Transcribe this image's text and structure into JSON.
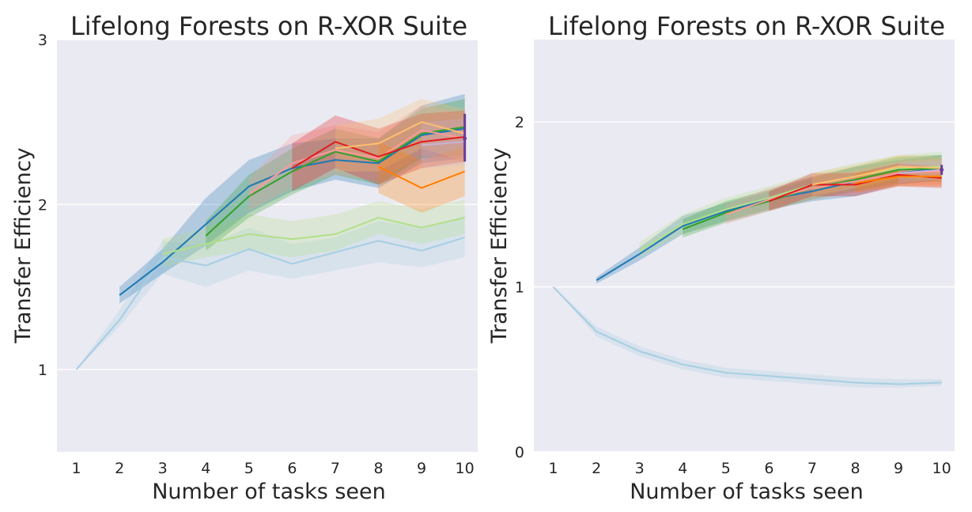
{
  "chart_data": [
    {
      "type": "line",
      "title": "Lifelong Forests on R-XOR Suite",
      "xlabel": "Number of tasks seen",
      "ylabel": "Transfer Efficiency",
      "x_ticks": [
        1,
        2,
        3,
        4,
        5,
        6,
        7,
        8,
        9,
        10
      ],
      "y_ticks": [
        1,
        2,
        3
      ],
      "xlim": [
        0.55,
        10.3
      ],
      "ylim": [
        0.5,
        3.0
      ],
      "grid": true,
      "background": "#eaeaf2",
      "series": [
        {
          "color": "#a6cee3",
          "x": [
            1,
            2,
            3,
            4,
            5,
            6,
            7,
            8,
            9,
            10
          ],
          "y": [
            1.0,
            1.3,
            1.68,
            1.63,
            1.73,
            1.64,
            1.71,
            1.78,
            1.72,
            1.8
          ],
          "lower": [
            1.0,
            1.26,
            1.58,
            1.5,
            1.6,
            1.55,
            1.6,
            1.65,
            1.62,
            1.68
          ],
          "upper": [
            1.0,
            1.36,
            1.78,
            1.75,
            1.86,
            1.76,
            1.8,
            1.9,
            1.86,
            1.93
          ]
        },
        {
          "color": "#1f78b4",
          "x": [
            2,
            3,
            4,
            5,
            6,
            7,
            8,
            9,
            10
          ],
          "y": [
            1.45,
            1.65,
            1.88,
            2.11,
            2.22,
            2.27,
            2.25,
            2.42,
            2.46
          ],
          "lower": [
            1.4,
            1.58,
            1.75,
            1.95,
            2.08,
            2.15,
            2.1,
            2.25,
            2.28
          ],
          "upper": [
            1.5,
            1.73,
            2.04,
            2.27,
            2.37,
            2.4,
            2.4,
            2.6,
            2.67
          ]
        },
        {
          "color": "#b2df8a",
          "x": [
            3,
            4,
            5,
            6,
            7,
            8,
            9,
            10
          ],
          "y": [
            1.7,
            1.76,
            1.82,
            1.79,
            1.82,
            1.92,
            1.86,
            1.92
          ],
          "lower": [
            1.62,
            1.68,
            1.72,
            1.68,
            1.72,
            1.82,
            1.76,
            1.82
          ],
          "upper": [
            1.79,
            1.86,
            1.94,
            1.9,
            1.94,
            2.02,
            1.97,
            2.03
          ]
        },
        {
          "color": "#33a02c",
          "x": [
            4,
            5,
            6,
            7,
            8,
            9,
            10
          ],
          "y": [
            1.81,
            2.05,
            2.2,
            2.32,
            2.26,
            2.43,
            2.47
          ],
          "lower": [
            1.72,
            1.92,
            2.06,
            2.18,
            2.12,
            2.28,
            2.3
          ],
          "upper": [
            1.9,
            2.18,
            2.34,
            2.46,
            2.4,
            2.58,
            2.64
          ]
        },
        {
          "color": "#fb9a99",
          "x": [
            5,
            6,
            7,
            8,
            9,
            10
          ],
          "y": [
            2.06,
            2.25,
            2.33,
            2.28,
            2.45,
            2.4
          ],
          "lower": [
            1.96,
            2.1,
            2.18,
            2.14,
            2.3,
            2.26
          ],
          "upper": [
            2.16,
            2.42,
            2.48,
            2.44,
            2.6,
            2.56
          ]
        },
        {
          "color": "#e31a1c",
          "x": [
            6,
            7,
            8,
            9,
            10
          ],
          "y": [
            2.22,
            2.38,
            2.29,
            2.38,
            2.41
          ],
          "lower": [
            2.08,
            2.22,
            2.12,
            2.22,
            2.26
          ],
          "upper": [
            2.37,
            2.54,
            2.46,
            2.55,
            2.57
          ]
        },
        {
          "color": "#fdbf6f",
          "x": [
            7,
            8,
            9,
            10
          ],
          "y": [
            2.34,
            2.37,
            2.5,
            2.43
          ],
          "lower": [
            2.2,
            2.2,
            2.34,
            2.26
          ],
          "upper": [
            2.48,
            2.52,
            2.64,
            2.58
          ]
        },
        {
          "color": "#ff7f00",
          "x": [
            8,
            9,
            10
          ],
          "y": [
            2.23,
            2.1,
            2.2
          ],
          "lower": [
            2.07,
            1.95,
            2.05
          ],
          "upper": [
            2.38,
            2.27,
            2.35
          ]
        },
        {
          "color": "#cab2d6",
          "x": [
            9,
            10
          ],
          "y": [
            2.36,
            2.38
          ],
          "lower": [
            2.22,
            2.24
          ],
          "upper": [
            2.5,
            2.52
          ]
        },
        {
          "color": "#6a3d9a",
          "x": [
            10
          ],
          "y": [
            2.4
          ],
          "lower": [
            2.26
          ],
          "upper": [
            2.55
          ]
        }
      ]
    },
    {
      "type": "line",
      "title": "Lifelong Forests on R-XOR Suite",
      "xlabel": "Number of tasks seen",
      "ylabel": "Transfer Efficiency",
      "x_ticks": [
        1,
        2,
        3,
        4,
        5,
        6,
        7,
        8,
        9,
        10
      ],
      "y_ticks": [
        0,
        1,
        2
      ],
      "xlim": [
        0.55,
        10.3
      ],
      "ylim": [
        0.0,
        2.5
      ],
      "grid": true,
      "background": "#eaeaf2",
      "series": [
        {
          "color": "#a6cee3",
          "x": [
            1,
            2,
            3,
            4,
            5,
            6,
            7,
            8,
            9,
            10
          ],
          "y": [
            1.0,
            0.73,
            0.61,
            0.53,
            0.48,
            0.46,
            0.44,
            0.42,
            0.41,
            0.42
          ],
          "lower": [
            1.0,
            0.7,
            0.58,
            0.5,
            0.45,
            0.43,
            0.41,
            0.39,
            0.39,
            0.4
          ],
          "upper": [
            1.0,
            0.76,
            0.64,
            0.56,
            0.51,
            0.49,
            0.47,
            0.45,
            0.44,
            0.44
          ]
        },
        {
          "color": "#1f78b4",
          "x": [
            2,
            3,
            4,
            5,
            6,
            7,
            8,
            9,
            10
          ],
          "y": [
            1.04,
            1.2,
            1.37,
            1.46,
            1.53,
            1.58,
            1.64,
            1.69,
            1.72
          ],
          "lower": [
            1.02,
            1.16,
            1.32,
            1.4,
            1.47,
            1.52,
            1.55,
            1.62,
            1.65
          ],
          "upper": [
            1.06,
            1.24,
            1.43,
            1.51,
            1.58,
            1.66,
            1.73,
            1.77,
            1.8
          ]
        },
        {
          "color": "#b2df8a",
          "x": [
            3,
            4,
            5,
            6,
            7,
            8,
            9,
            10
          ],
          "y": [
            1.22,
            1.38,
            1.47,
            1.54,
            1.62,
            1.67,
            1.72,
            1.73
          ],
          "lower": [
            1.18,
            1.32,
            1.4,
            1.47,
            1.54,
            1.59,
            1.64,
            1.64
          ],
          "upper": [
            1.27,
            1.44,
            1.54,
            1.61,
            1.69,
            1.75,
            1.8,
            1.82
          ]
        },
        {
          "color": "#33a02c",
          "x": [
            4,
            5,
            6,
            7,
            8,
            9,
            10
          ],
          "y": [
            1.35,
            1.45,
            1.52,
            1.6,
            1.65,
            1.71,
            1.72
          ],
          "lower": [
            1.3,
            1.39,
            1.46,
            1.53,
            1.58,
            1.63,
            1.64
          ],
          "upper": [
            1.41,
            1.52,
            1.59,
            1.67,
            1.73,
            1.79,
            1.8
          ]
        },
        {
          "color": "#fb9a99",
          "x": [
            5,
            6,
            7,
            8,
            9,
            10
          ],
          "y": [
            1.44,
            1.53,
            1.6,
            1.64,
            1.69,
            1.7
          ],
          "lower": [
            1.38,
            1.46,
            1.53,
            1.57,
            1.62,
            1.62
          ],
          "upper": [
            1.5,
            1.6,
            1.67,
            1.71,
            1.76,
            1.78
          ]
        },
        {
          "color": "#e31a1c",
          "x": [
            6,
            7,
            8,
            9,
            10
          ],
          "y": [
            1.52,
            1.62,
            1.62,
            1.68,
            1.66
          ],
          "lower": [
            1.46,
            1.55,
            1.55,
            1.61,
            1.6
          ],
          "upper": [
            1.58,
            1.69,
            1.69,
            1.75,
            1.73
          ]
        },
        {
          "color": "#fdbf6f",
          "x": [
            7,
            8,
            9,
            10
          ],
          "y": [
            1.62,
            1.67,
            1.73,
            1.72
          ],
          "lower": [
            1.55,
            1.6,
            1.66,
            1.65
          ],
          "upper": [
            1.69,
            1.74,
            1.8,
            1.79
          ]
        },
        {
          "color": "#ff7f00",
          "x": [
            8,
            9,
            10
          ],
          "y": [
            1.63,
            1.67,
            1.67
          ],
          "lower": [
            1.57,
            1.61,
            1.61
          ],
          "upper": [
            1.69,
            1.73,
            1.73
          ]
        },
        {
          "color": "#cab2d6",
          "x": [
            9,
            10
          ],
          "y": [
            1.69,
            1.71
          ],
          "lower": [
            1.63,
            1.65
          ],
          "upper": [
            1.75,
            1.77
          ]
        },
        {
          "color": "#6a3d9a",
          "x": [
            10
          ],
          "y": [
            1.71
          ],
          "lower": [
            1.68
          ],
          "upper": [
            1.74
          ]
        }
      ]
    }
  ]
}
